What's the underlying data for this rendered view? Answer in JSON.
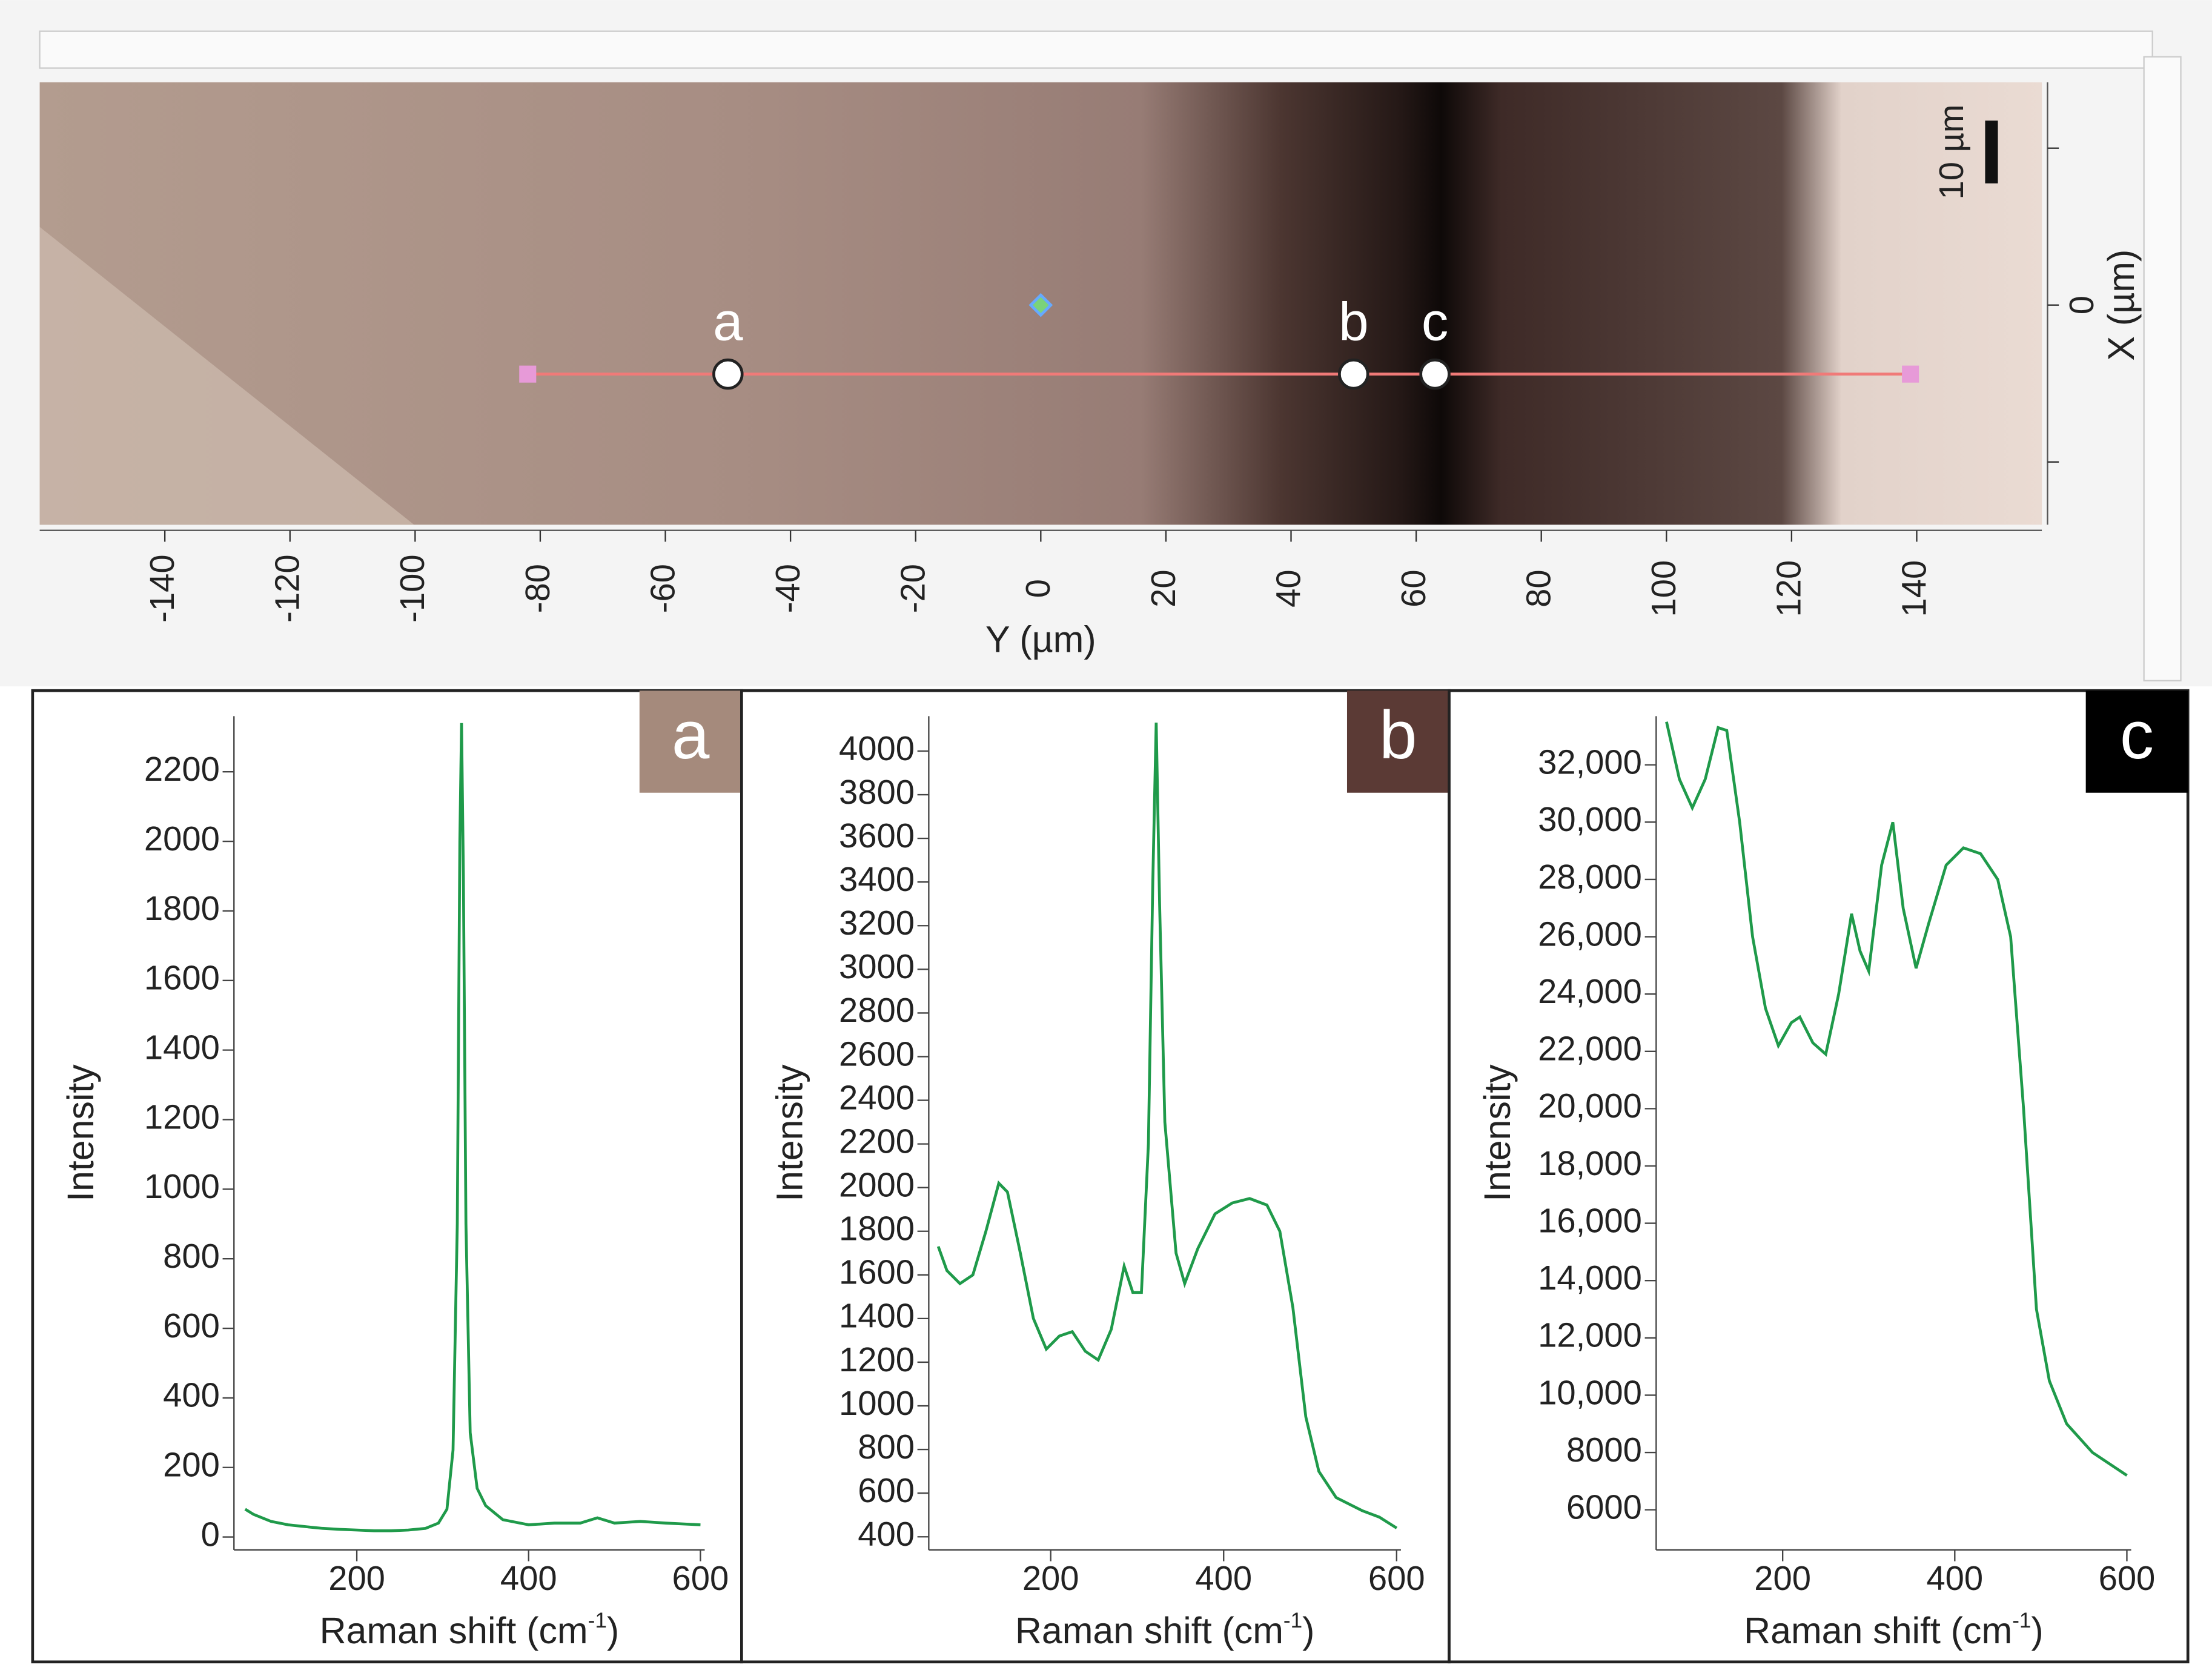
{
  "chart_data": [
    {
      "type": "map",
      "xlabel": "Y (µm)",
      "ylabel": "X (µm)",
      "xlim": [
        -160,
        160
      ],
      "xticks": [
        -140,
        -120,
        -100,
        -80,
        -60,
        -40,
        -20,
        0,
        20,
        40,
        60,
        80,
        100,
        120,
        140
      ],
      "ylim": [
        -35,
        35.5
      ],
      "yticks": [
        0
      ],
      "yminor": [
        -25,
        25
      ],
      "line": {
        "x": [
          -82,
          139
        ],
        "y": [
          -11,
          -11
        ],
        "color": "#f07a78"
      },
      "center": {
        "x": [
          0
        ],
        "y": [
          0
        ]
      },
      "points": {
        "labels": [
          "a",
          "b",
          "c"
        ],
        "x": [
          -50,
          50,
          63
        ],
        "y": [
          -11,
          -11,
          -11
        ]
      },
      "scale_bar": {
        "label": "10 µm",
        "length": 10
      }
    },
    {
      "type": "line",
      "panel_label": "a",
      "panel_color": "#a58a7c",
      "xlabel": [
        "Raman shift (cm",
        "-1",
        ")"
      ],
      "ylabel": "Intensity",
      "xlim": [
        57,
        605
      ],
      "xticks": [
        200,
        400,
        600
      ],
      "ylim": [
        -37,
        2360
      ],
      "yticks": [
        0,
        200,
        400,
        600,
        800,
        1000,
        1200,
        1400,
        1600,
        1800,
        2000,
        2200
      ],
      "color": "#1f9a4a",
      "x": [
        70,
        80,
        100,
        120,
        140,
        160,
        180,
        200,
        220,
        240,
        260,
        280,
        295,
        305,
        312,
        317,
        320,
        322,
        324,
        327,
        332,
        340,
        350,
        370,
        400,
        430,
        460,
        480,
        500,
        530,
        560,
        600
      ],
      "values": [
        80,
        65,
        45,
        35,
        30,
        25,
        22,
        20,
        18,
        18,
        20,
        25,
        40,
        80,
        250,
        900,
        2000,
        2340,
        1900,
        900,
        300,
        140,
        90,
        50,
        35,
        40,
        40,
        55,
        40,
        45,
        40,
        35
      ]
    },
    {
      "type": "line",
      "panel_label": "b",
      "panel_color": "#5b3a35",
      "xlabel": [
        "Raman shift (cm",
        "-1",
        ")"
      ],
      "ylabel": "Intensity",
      "xlim": [
        59,
        605
      ],
      "xticks": [
        200,
        400,
        600
      ],
      "ylim": [
        340,
        4160
      ],
      "yticks": [
        400,
        600,
        800,
        1000,
        1200,
        1400,
        1600,
        1800,
        2000,
        2200,
        2400,
        2600,
        2800,
        3000,
        3200,
        3400,
        3600,
        3800,
        4000
      ],
      "color": "#1f9a4a",
      "x": [
        70,
        80,
        95,
        110,
        125,
        140,
        150,
        165,
        180,
        195,
        210,
        225,
        240,
        255,
        270,
        285,
        295,
        305,
        313,
        318,
        322,
        326,
        332,
        345,
        355,
        370,
        390,
        410,
        430,
        450,
        465,
        480,
        495,
        510,
        530,
        560,
        580,
        600
      ],
      "values": [
        1730,
        1620,
        1560,
        1600,
        1800,
        2020,
        1980,
        1700,
        1400,
        1260,
        1320,
        1340,
        1250,
        1210,
        1350,
        1640,
        1520,
        1520,
        2200,
        3400,
        4130,
        3300,
        2300,
        1700,
        1560,
        1720,
        1880,
        1930,
        1950,
        1920,
        1800,
        1450,
        950,
        700,
        580,
        520,
        490,
        440
      ]
    },
    {
      "type": "line",
      "panel_label": "c",
      "panel_color": "#000000",
      "xlabel": [
        "Raman shift (cm",
        "-1",
        ")"
      ],
      "ylabel": "Intensity",
      "xlim": [
        53,
        605
      ],
      "xticks": [
        200,
        400,
        600
      ],
      "ylim": [
        4600,
        33700
      ],
      "yticks": [
        6000,
        8000,
        {
          "value": 10000,
          "label": "10,000"
        },
        {
          "value": 12000,
          "label": "12,000"
        },
        {
          "value": 14000,
          "label": "14,000"
        },
        {
          "value": 16000,
          "label": "16,000"
        },
        {
          "value": 18000,
          "label": "18,000"
        },
        {
          "value": 20000,
          "label": "20,000"
        },
        {
          "value": 22000,
          "label": "22,000"
        },
        {
          "value": 24000,
          "label": "24,000"
        },
        {
          "value": 26000,
          "label": "26,000"
        },
        {
          "value": 28000,
          "label": "28,000"
        },
        {
          "value": 30000,
          "label": "30,000"
        },
        {
          "value": 32000,
          "label": "32,000"
        }
      ],
      "color": "#1f9a4a",
      "x": [
        65,
        80,
        95,
        110,
        125,
        135,
        150,
        165,
        180,
        195,
        210,
        220,
        235,
        250,
        265,
        280,
        290,
        300,
        315,
        328,
        340,
        355,
        370,
        390,
        410,
        430,
        450,
        465,
        480,
        495,
        510,
        530,
        560,
        600
      ],
      "values": [
        33500,
        31500,
        30500,
        31500,
        33300,
        33200,
        30000,
        26000,
        23500,
        22200,
        23000,
        23200,
        22300,
        21900,
        24000,
        26800,
        25500,
        24800,
        28500,
        30000,
        27000,
        24900,
        26500,
        28500,
        29100,
        28900,
        28000,
        26000,
        20000,
        13000,
        10500,
        9000,
        8000,
        7200
      ]
    }
  ]
}
